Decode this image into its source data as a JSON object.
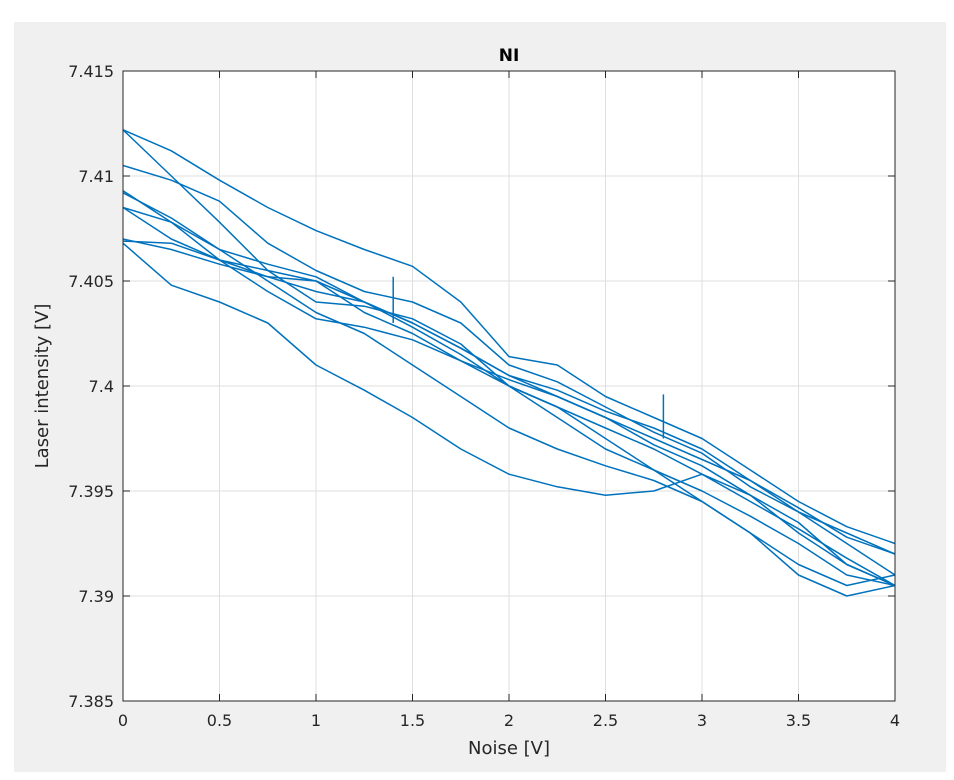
{
  "chart_data": {
    "type": "line",
    "title": "NI",
    "xlabel": "Noise [V]",
    "ylabel": "Laser intensity [V]",
    "xlim": [
      0,
      4
    ],
    "ylim": [
      7.385,
      7.415
    ],
    "xticks": [
      0,
      0.5,
      1,
      1.5,
      2,
      2.5,
      3,
      3.5,
      4
    ],
    "xtick_labels": [
      "0",
      "0.5",
      "1",
      "1.5",
      "2",
      "2.5",
      "3",
      "3.5",
      "4"
    ],
    "yticks": [
      7.385,
      7.39,
      7.395,
      7.4,
      7.405,
      7.41,
      7.415
    ],
    "ytick_labels": [
      "7.385",
      "7.39",
      "7.395",
      "7.4",
      "7.405",
      "7.41",
      "7.415"
    ],
    "grid": true,
    "line_color": "#0072BD",
    "series": [
      {
        "x": [
          0,
          0.25,
          0.5,
          0.75,
          1,
          1.25,
          1.5,
          1.75,
          2,
          2.25,
          2.5,
          2.75,
          3,
          3.25,
          3.5,
          3.75,
          4
        ],
        "y": [
          7.4122,
          7.4112,
          7.4098,
          7.4085,
          7.4074,
          7.4065,
          7.4057,
          7.404,
          7.4014,
          7.401,
          7.3995,
          7.3985,
          7.3975,
          7.396,
          7.3945,
          7.3933,
          7.3925
        ]
      },
      {
        "x": [
          0,
          0.25,
          0.5,
          0.75,
          1,
          1.25,
          1.5,
          1.75,
          2,
          2.25,
          2.5,
          2.75,
          3,
          3.25,
          3.5,
          3.75,
          4
        ],
        "y": [
          7.4105,
          7.4098,
          7.4088,
          7.4068,
          7.4055,
          7.4045,
          7.404,
          7.403,
          7.401,
          7.4002,
          7.399,
          7.3978,
          7.3968,
          7.3952,
          7.394,
          7.393,
          7.392
        ]
      },
      {
        "x": [
          0,
          0.25,
          0.5,
          0.75,
          1,
          1.25,
          1.5,
          1.75,
          2,
          2.25,
          2.5,
          2.75,
          3,
          3.25,
          3.5,
          3.75,
          4
        ],
        "y": [
          7.4068,
          7.4048,
          7.404,
          7.403,
          7.401,
          7.3998,
          7.3985,
          7.397,
          7.3958,
          7.3952,
          7.3948,
          7.395,
          7.3958,
          7.3948,
          7.3935,
          7.3915,
          7.3905
        ]
      },
      {
        "x": [
          0,
          0.25,
          0.5,
          0.75,
          1,
          1.25,
          1.5,
          1.75,
          2,
          2.25,
          2.5,
          2.75,
          3,
          3.25,
          3.5,
          3.75,
          4
        ],
        "y": [
          7.4122,
          7.41,
          7.4078,
          7.4055,
          7.404,
          7.4038,
          7.4032,
          7.402,
          7.4,
          7.399,
          7.3975,
          7.396,
          7.3945,
          7.393,
          7.391,
          7.39,
          7.3905
        ]
      },
      {
        "x": [
          0,
          0.25,
          0.5,
          0.75,
          1,
          1.25,
          1.5,
          1.75,
          2,
          2.25,
          2.5,
          2.75,
          3,
          3.25,
          3.5,
          3.75,
          4
        ],
        "y": [
          7.4093,
          7.4078,
          7.406,
          7.4045,
          7.4032,
          7.4028,
          7.4022,
          7.4012,
          7.4003,
          7.3995,
          7.3985,
          7.3975,
          7.3965,
          7.3955,
          7.3942,
          7.3928,
          7.392
        ]
      },
      {
        "x": [
          0,
          0.25,
          0.5,
          0.75,
          1,
          1.25,
          1.5,
          1.75,
          2,
          2.25,
          2.5,
          2.75,
          3,
          3.25,
          3.5,
          3.75,
          4
        ],
        "y": [
          7.4085,
          7.4078,
          7.4065,
          7.4058,
          7.4052,
          7.404,
          7.403,
          7.4018,
          7.4005,
          7.3995,
          7.3985,
          7.3972,
          7.3962,
          7.3948,
          7.393,
          7.3915,
          7.3905
        ]
      },
      {
        "x": [
          0,
          0.25,
          0.5,
          0.75,
          1,
          1.25,
          1.5,
          1.75,
          2,
          2.25,
          2.5,
          2.75,
          3,
          3.25,
          3.5,
          3.75,
          4
        ],
        "y": [
          7.4069,
          7.4068,
          7.406,
          7.4055,
          7.405,
          7.404,
          7.403,
          7.4018,
          7.4005,
          7.3998,
          7.3988,
          7.398,
          7.397,
          7.3955,
          7.394,
          7.3925,
          7.391
        ]
      },
      {
        "x": [
          0,
          0.25,
          0.5,
          0.75,
          1,
          1.25,
          1.5,
          1.75,
          2,
          2.25,
          2.5,
          2.75,
          3,
          3.25,
          3.5,
          3.75,
          4
        ],
        "y": [
          7.407,
          7.4065,
          7.4058,
          7.4052,
          7.4045,
          7.404,
          7.4028,
          7.4015,
          7.4,
          7.399,
          7.398,
          7.397,
          7.3958,
          7.3945,
          7.3932,
          7.3918,
          7.3905
        ]
      },
      {
        "x": [
          0,
          0.25,
          0.5,
          0.75,
          1,
          1.25,
          1.5,
          1.75,
          2,
          2.25,
          2.5,
          2.75,
          3,
          3.25,
          3.5,
          3.75,
          4
        ],
        "y": [
          7.4085,
          7.407,
          7.406,
          7.4052,
          7.405,
          7.4035,
          7.4025,
          7.4012,
          7.4,
          7.3985,
          7.397,
          7.396,
          7.395,
          7.3938,
          7.3925,
          7.391,
          7.3905
        ]
      },
      {
        "x": [
          0,
          0.25,
          0.5,
          0.75,
          1,
          1.25,
          1.5,
          1.75,
          2,
          2.25,
          2.5,
          2.75,
          3,
          3.25,
          3.5,
          3.75,
          4
        ],
        "y": [
          7.4092,
          7.408,
          7.4065,
          7.405,
          7.4035,
          7.4025,
          7.401,
          7.3995,
          7.398,
          7.397,
          7.3962,
          7.3955,
          7.3945,
          7.393,
          7.3915,
          7.3905,
          7.391
        ]
      }
    ],
    "spikes": [
      {
        "x": 1.4,
        "y_from": 7.403,
        "y_to": 7.4052
      },
      {
        "x": 2.8,
        "y_from": 7.3975,
        "y_to": 7.3996
      }
    ]
  }
}
